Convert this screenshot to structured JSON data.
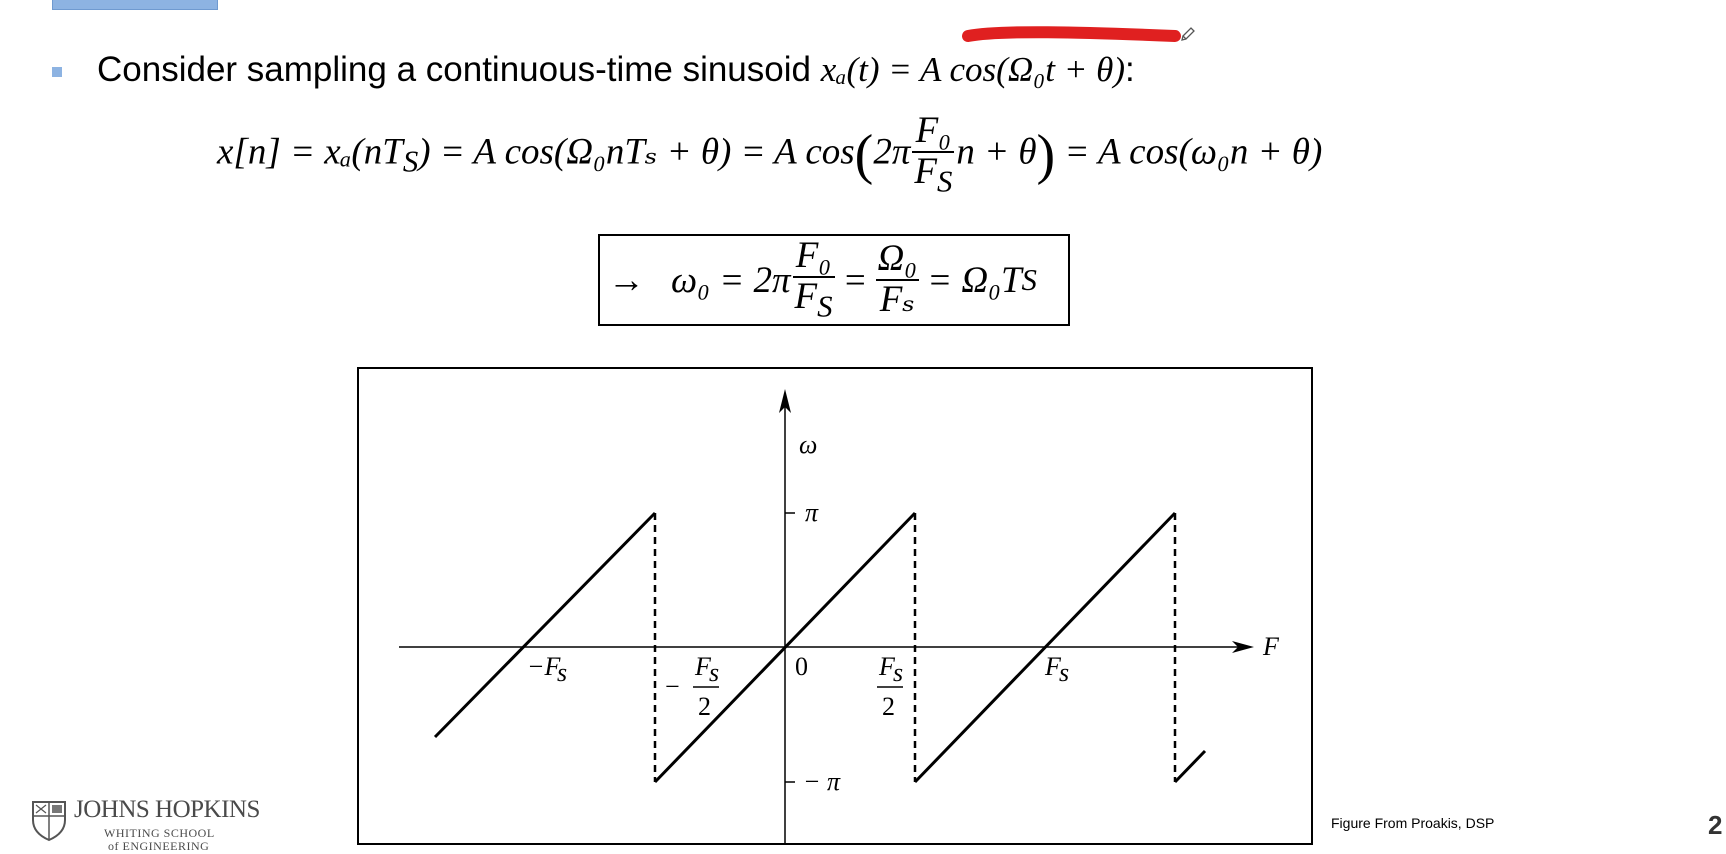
{
  "bullet": {
    "text": "Consider sampling a continuous-time sinusoid",
    "math": "xₐ(t) = A cos(Ω₀t + θ)",
    "colon": ":"
  },
  "equation": {
    "lhs": "x[n] = xₐ(nT",
    "lhs_sub": "S",
    "part2": ") = A cos(Ω₀nTₛ + θ) = A cos",
    "two_pi": "2π",
    "frac_num": "F₀",
    "frac_den": "F",
    "frac_den_sub": "S",
    "part3": "n + θ",
    "rhs": "= A cos(ω₀n + θ)"
  },
  "result": {
    "arrow": "→",
    "lhs": "ω₀ = 2π",
    "frac1_num": "F₀",
    "frac1_den": "F",
    "frac1_den_sub": "S",
    "eq1": "=",
    "frac2_num": "Ω₀",
    "frac2_den": "Fₛ",
    "eq2": "= Ω₀T",
    "eq2_sub": "S"
  },
  "figure": {
    "y_axis_label": "ω",
    "x_axis_label": "F",
    "pi_label": "π",
    "neg_pi_label": "− π",
    "zero_label": "0",
    "neg_fs_label": "−F",
    "fs_label": "F",
    "s_sub": "s",
    "half_num": "F",
    "half_den": "2",
    "minus": "−"
  },
  "caption": "Figure From Proakis, DSP",
  "page_number": "2",
  "logo": {
    "title": "JOHNS HOPKINS",
    "sub1": "WHITING SCHOOL",
    "sub2": "of ENGINEERING"
  },
  "annotation_color": "#e02020",
  "accent_color": "#8db3e2"
}
